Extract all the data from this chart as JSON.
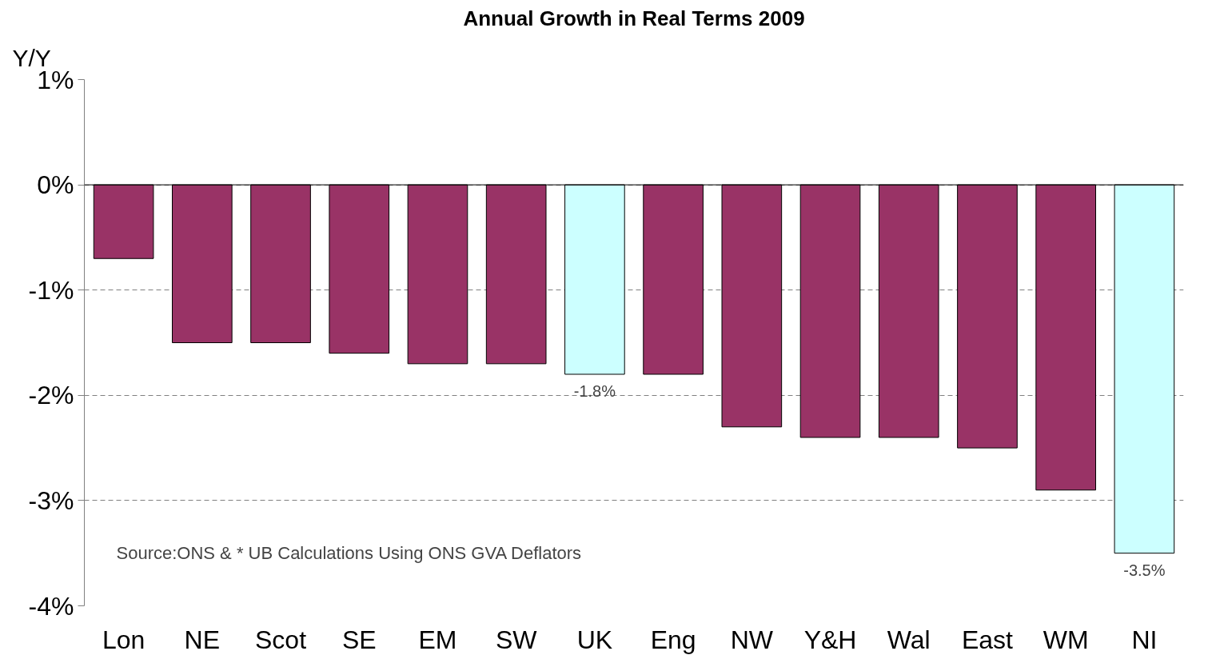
{
  "chart_data": {
    "type": "bar",
    "title": "Annual Growth in Real Terms 2009",
    "ylabel": "Y/Y",
    "categories": [
      "Lon",
      "NE",
      "Scot",
      "SE",
      "EM",
      "SW",
      "UK",
      "Eng",
      "NW",
      "Y&H",
      "Wal",
      "East",
      "WM",
      "NI"
    ],
    "values": [
      -0.7,
      -1.5,
      -1.5,
      -1.6,
      -1.7,
      -1.7,
      -1.8,
      -1.8,
      -2.3,
      -2.4,
      -2.4,
      -2.5,
      -2.9,
      -3.5
    ],
    "colors": [
      "#993366",
      "#993366",
      "#993366",
      "#993366",
      "#993366",
      "#993366",
      "#ccffff",
      "#993366",
      "#993366",
      "#993366",
      "#993366",
      "#993366",
      "#993366",
      "#ccffff"
    ],
    "value_labels": [
      null,
      null,
      null,
      null,
      null,
      null,
      "-1.8%",
      null,
      null,
      null,
      null,
      null,
      null,
      "-3.5%"
    ],
    "ylim": [
      -4,
      1
    ],
    "yticks": [
      {
        "value": 1,
        "label": "1%"
      },
      {
        "value": 0,
        "label": "0%"
      },
      {
        "value": -1,
        "label": "-1%"
      },
      {
        "value": -2,
        "label": "-2%"
      },
      {
        "value": -3,
        "label": "-3%"
      },
      {
        "value": -4,
        "label": "-4%"
      }
    ],
    "grid": "y",
    "ref_lines": [
      {
        "axis": "y",
        "value": 0,
        "color": "#000000"
      }
    ],
    "annotations": [
      "Source:ONS & * UB Calculations Using ONS GVA Deflators"
    ]
  }
}
